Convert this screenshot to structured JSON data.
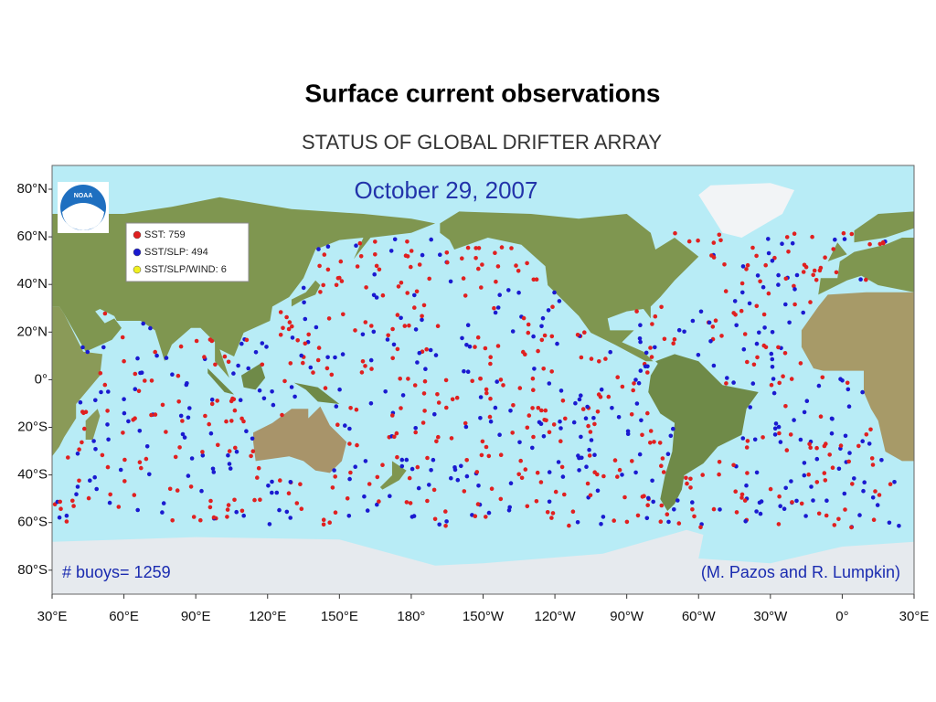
{
  "title": "Surface current observations",
  "map": {
    "title": "STATUS OF GLOBAL DRIFTER ARRAY",
    "date": "October 29, 2007",
    "logo": "NOAA",
    "legend": [
      {
        "label": "SST: 759",
        "color": "#e02020"
      },
      {
        "label": "SST/SLP: 494",
        "color": "#1a1ad0"
      },
      {
        "label": "SST/SLP/WIND: 6",
        "color": "#f0f020"
      }
    ],
    "buoy_count": "# buoys= 1259",
    "credit": "(M. Pazos and R. Lumpkin)",
    "lat_labels": [
      "80°N",
      "60°N",
      "40°N",
      "20°N",
      "0°",
      "20°S",
      "40°S",
      "60°S",
      "80°S"
    ],
    "lon_labels": [
      "30°E",
      "60°E",
      "90°E",
      "120°E",
      "150°E",
      "180°",
      "150°W",
      "120°W",
      "90°W",
      "60°W",
      "30°W",
      "0°",
      "30°E"
    ]
  }
}
